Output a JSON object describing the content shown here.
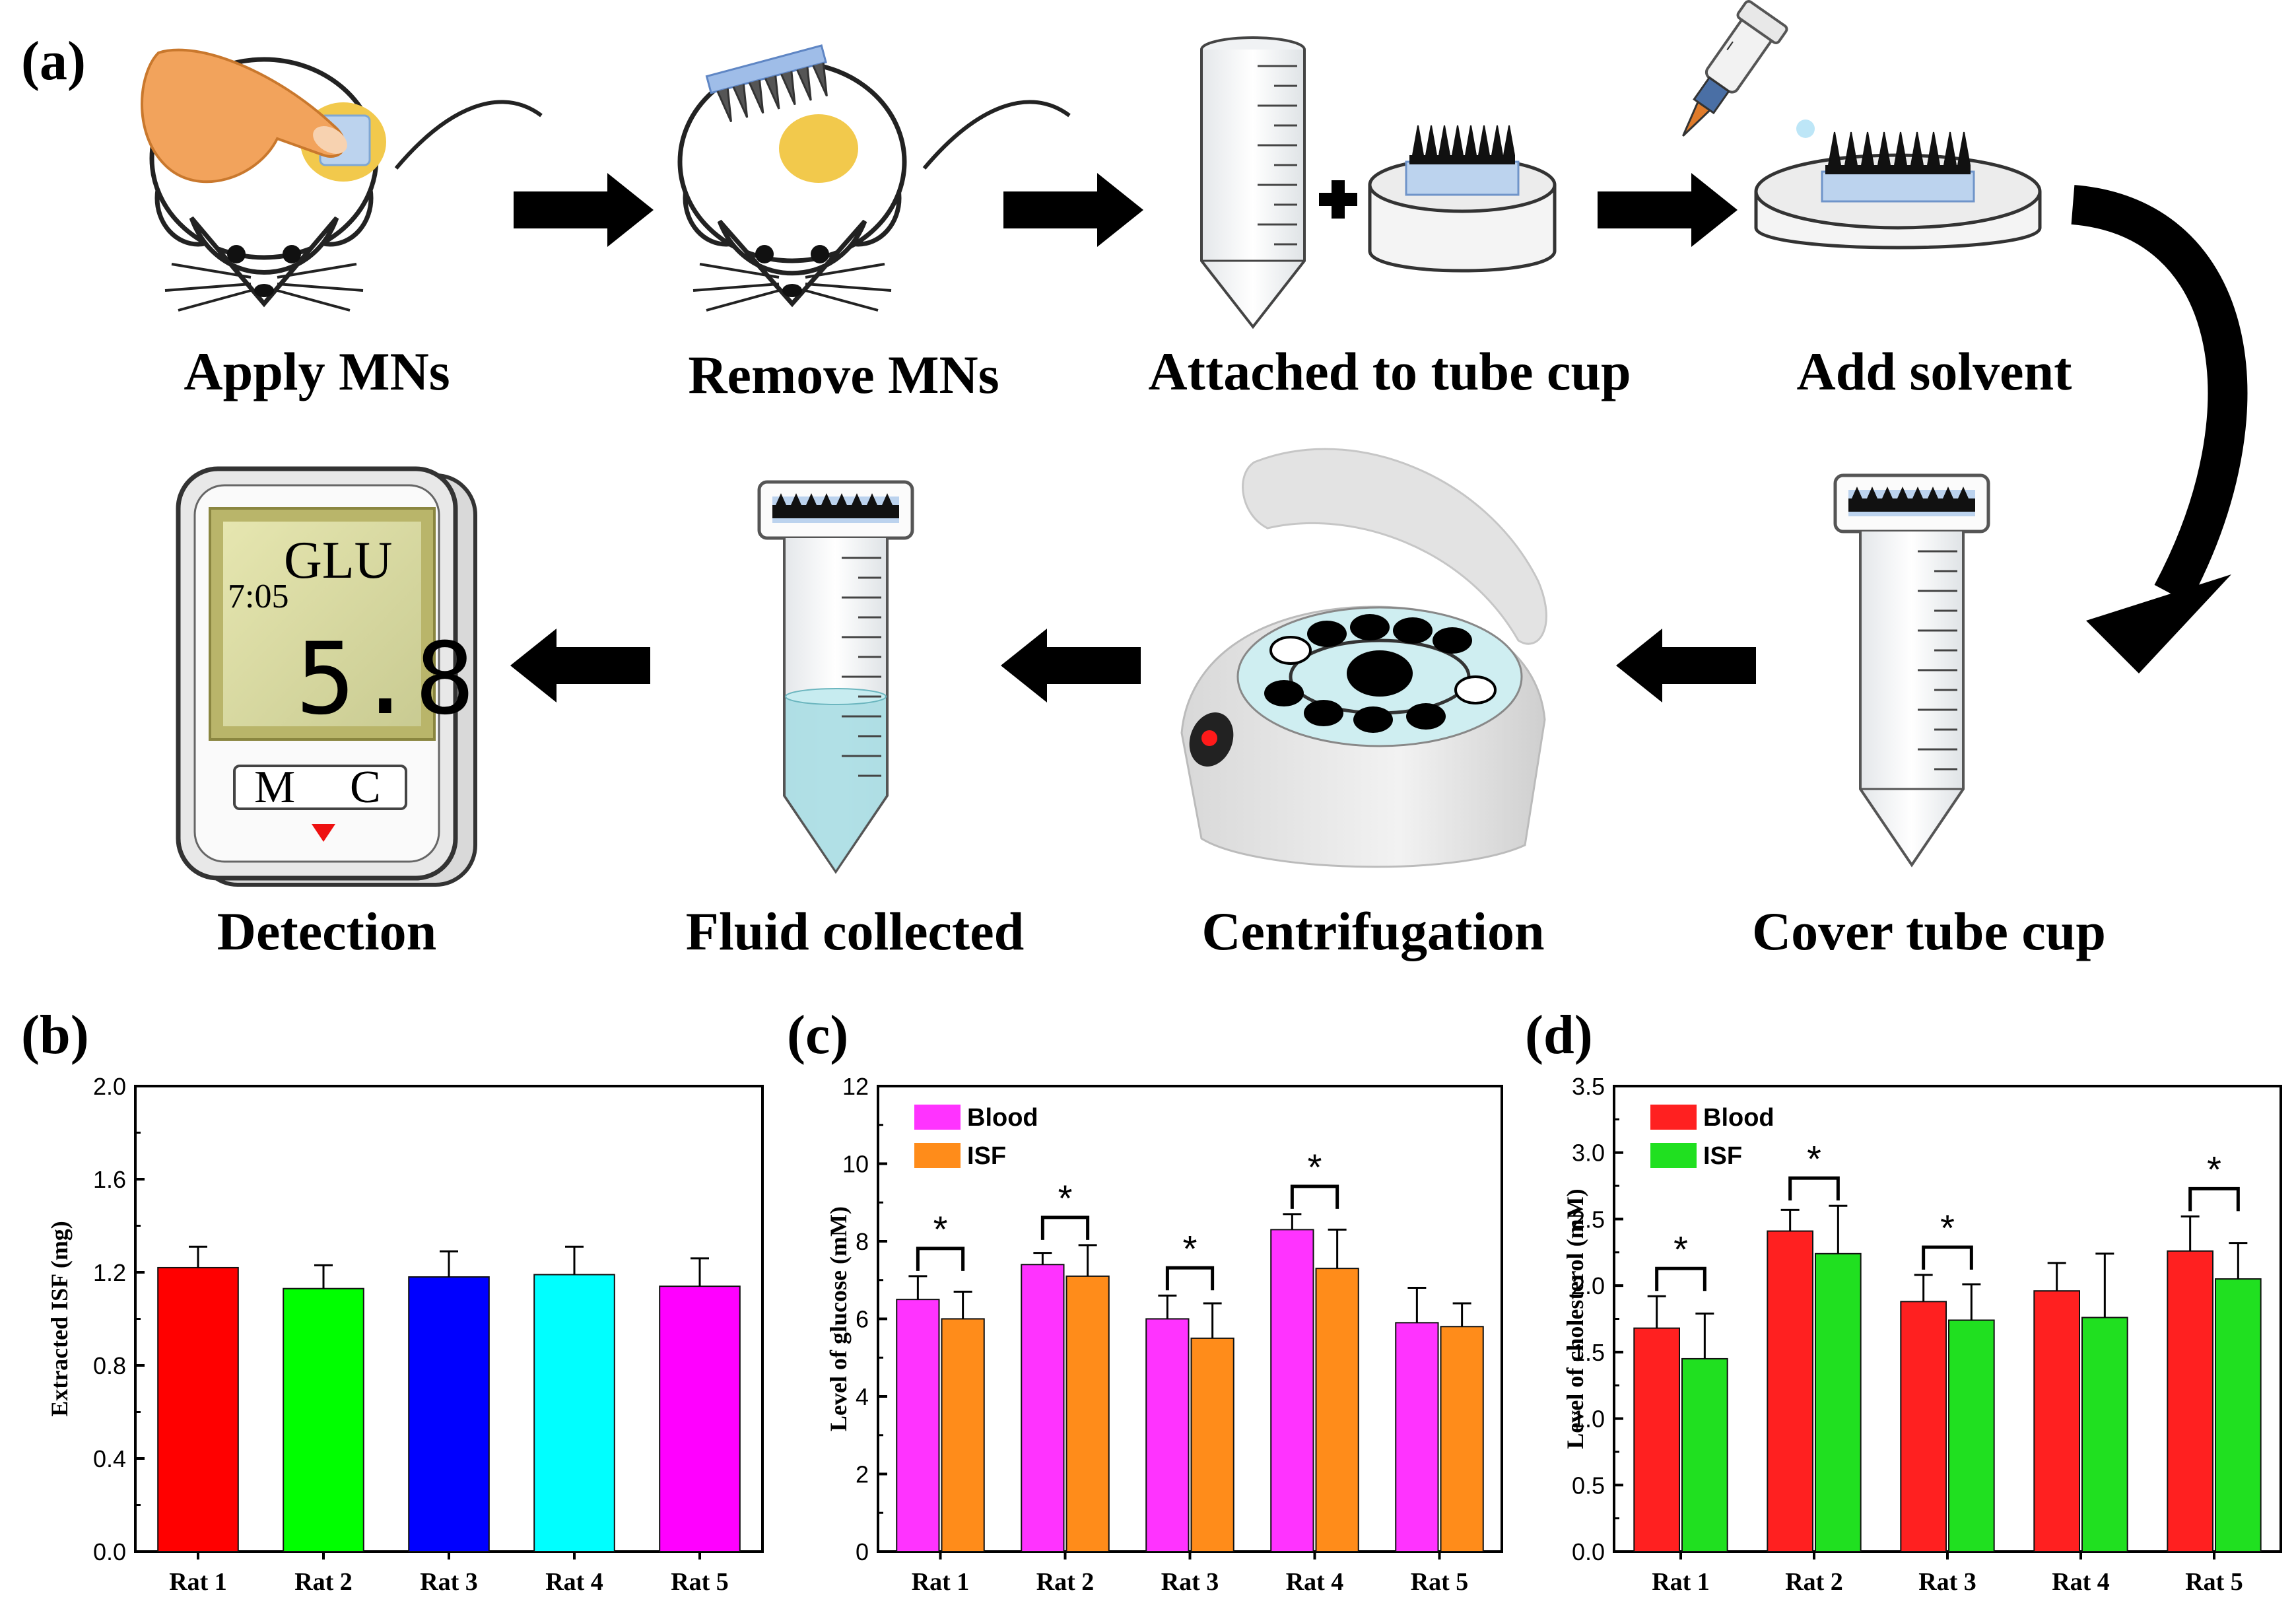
{
  "panel_labels": {
    "a": "(a)",
    "b": "(b)",
    "c": "(c)",
    "d": "(d)"
  },
  "workflow": {
    "apply": "Apply MNs",
    "remove": "Remove MNs",
    "attach": "Attached to tube cup",
    "solvent": "Add solvent",
    "cover": "Cover tube cup",
    "centrifugation": "Centrifugation",
    "fluid": "Fluid collected",
    "detection": "Detection"
  },
  "meter": {
    "time": "7:05",
    "analyte": "GLU",
    "reading": "5.8",
    "btn_m": "M",
    "btn_c": "C"
  },
  "chart_data": [
    {
      "type": "bar",
      "panel": "b",
      "ylabel": "Extracted ISF (mg)",
      "ylim": [
        0,
        2.0
      ],
      "yticks": [
        "0.0",
        "0.4",
        "0.8",
        "1.2",
        "1.6",
        "2.0"
      ],
      "categories": [
        "Rat 1",
        "Rat 2",
        "Rat 3",
        "Rat 4",
        "Rat 5"
      ],
      "values": [
        1.22,
        1.13,
        1.18,
        1.19,
        1.14
      ],
      "errors": [
        0.09,
        0.1,
        0.11,
        0.12,
        0.12
      ],
      "colors": [
        "#ff0000",
        "#00ff00",
        "#0000ff",
        "#00ffff",
        "#ff00ff"
      ]
    },
    {
      "type": "bar",
      "panel": "c",
      "ylabel": "Level of glucose (mM)",
      "ylim": [
        0,
        12
      ],
      "yticks": [
        "0",
        "2",
        "4",
        "6",
        "8",
        "10",
        "12"
      ],
      "categories": [
        "Rat 1",
        "Rat 2",
        "Rat 3",
        "Rat 4",
        "Rat 5"
      ],
      "legend": "top-left",
      "series": [
        {
          "name": "Blood",
          "color": "#ff33ff",
          "values": [
            6.5,
            7.4,
            6.0,
            8.3,
            5.9
          ],
          "errors": [
            0.6,
            0.3,
            0.6,
            0.4,
            0.9
          ]
        },
        {
          "name": "ISF",
          "color": "#ff8c1a",
          "values": [
            6.0,
            7.1,
            5.5,
            7.3,
            5.8
          ],
          "errors": [
            0.7,
            0.8,
            0.9,
            1.0,
            0.6
          ]
        }
      ],
      "significance": [
        "*",
        "*",
        "*",
        "*",
        ""
      ]
    },
    {
      "type": "bar",
      "panel": "d",
      "ylabel": "Level of cholesterol (mM)",
      "ylim": [
        0,
        3.5
      ],
      "yticks": [
        "0.0",
        "0.5",
        "1.0",
        "1.5",
        "2.0",
        "2.5",
        "3.0",
        "3.5"
      ],
      "categories": [
        "Rat 1",
        "Rat 2",
        "Rat 3",
        "Rat 4",
        "Rat 5"
      ],
      "legend": "top-left",
      "series": [
        {
          "name": "Blood",
          "color": "#ff2020",
          "values": [
            1.68,
            2.41,
            1.88,
            1.96,
            2.26
          ],
          "errors": [
            0.24,
            0.16,
            0.2,
            0.21,
            0.26
          ]
        },
        {
          "name": "ISF",
          "color": "#20e020",
          "values": [
            1.45,
            2.24,
            1.74,
            1.76,
            2.05
          ],
          "errors": [
            0.34,
            0.36,
            0.27,
            0.48,
            0.27
          ]
        }
      ],
      "significance": [
        "*",
        "*",
        "*",
        "",
        "*"
      ]
    }
  ]
}
